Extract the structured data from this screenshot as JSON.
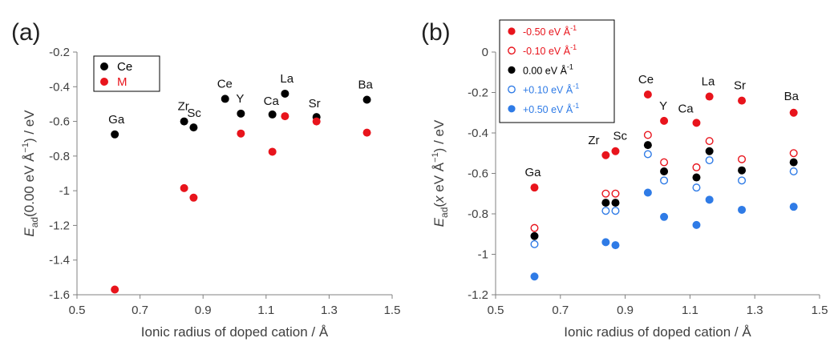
{
  "colors": {
    "black": "#000000",
    "red": "#e8141c",
    "blue": "#2f7be6",
    "axis": "#808080"
  },
  "chart_data": [
    {
      "panel_label": "(a)",
      "type": "scatter",
      "xlabel": "Ionic radius of doped cation / Å",
      "ylabel_parts": [
        "E",
        "ad",
        "(0.00 eV Å",
        "−1",
        ") / eV"
      ],
      "xlim": [
        0.5,
        1.5
      ],
      "ylim": [
        -1.6,
        -0.2
      ],
      "xticks": [
        0.5,
        0.7,
        0.9,
        1.1,
        1.3,
        1.5
      ],
      "xtick_labels": [
        "0.5",
        "0.7",
        "0.9",
        "1.1",
        "1.3",
        "1.5"
      ],
      "yticks": [
        -1.6,
        -1.4,
        -1.2,
        -1.0,
        -0.8,
        -0.6,
        -0.4,
        -0.2
      ],
      "ytick_labels": [
        "-1.6",
        "-1.4",
        "-1.2",
        "-1",
        "-0.8",
        "-0.6",
        "-0.4",
        "-0.2"
      ],
      "grid": false,
      "legend_position": "top-left",
      "series": [
        {
          "name": "Ce",
          "color": "#000000",
          "fill": "filled",
          "x": [
            0.62,
            0.84,
            0.87,
            0.97,
            1.02,
            1.12,
            1.16,
            1.26,
            1.42
          ],
          "y": [
            -0.675,
            -0.6,
            -0.635,
            -0.47,
            -0.555,
            -0.56,
            -0.44,
            -0.575,
            -0.475
          ]
        },
        {
          "name": "M",
          "color": "#e8141c",
          "fill": "filled",
          "x": [
            0.62,
            0.84,
            0.87,
            1.02,
            1.12,
            1.16,
            1.26,
            1.42
          ],
          "y": [
            -1.57,
            -0.985,
            -1.04,
            -0.67,
            -0.775,
            -0.57,
            -0.6,
            -0.665
          ]
        }
      ],
      "annotations": [
        {
          "text": "Ga",
          "x": 0.62,
          "y": -0.675
        },
        {
          "text": "Zr",
          "x": 0.84,
          "y": -0.6
        },
        {
          "text": "Sc",
          "x": 0.87,
          "y": -0.635
        },
        {
          "text": "Ce",
          "x": 0.97,
          "y": -0.47
        },
        {
          "text": "Y",
          "x": 1.02,
          "y": -0.555
        },
        {
          "text": "Ca",
          "x": 1.12,
          "y": -0.56
        },
        {
          "text": "La",
          "x": 1.16,
          "y": -0.44
        },
        {
          "text": "Sr",
          "x": 1.26,
          "y": -0.575
        },
        {
          "text": "Ba",
          "x": 1.42,
          "y": -0.475
        }
      ]
    },
    {
      "panel_label": "(b)",
      "type": "scatter",
      "xlabel": "Ionic radius of doped cation / Å",
      "ylabel_parts": [
        "E",
        "ad",
        "(",
        "x",
        " eV Å",
        "−1",
        ") / eV"
      ],
      "xlim": [
        0.5,
        1.5
      ],
      "ylim": [
        -1.2,
        0
      ],
      "xticks": [
        0.5,
        0.7,
        0.9,
        1.1,
        1.3,
        1.5
      ],
      "xtick_labels": [
        "0.5",
        "0.7",
        "0.9",
        "1.1",
        "1.3",
        "1.5"
      ],
      "yticks": [
        -1.2,
        -1.0,
        -0.8,
        -0.6,
        -0.4,
        -0.2,
        0
      ],
      "ytick_labels": [
        "-1.2",
        "-1",
        "-0.8",
        "-0.6",
        "-0.4",
        "-0.2",
        "0"
      ],
      "grid": false,
      "legend_position": "top-left",
      "series": [
        {
          "name": "-0.50 eV Å",
          "name_sup": "-1",
          "color": "#e8141c",
          "fill": "filled",
          "x": [
            0.62,
            0.84,
            0.87,
            0.97,
            1.02,
            1.12,
            1.16,
            1.26,
            1.42
          ],
          "y": [
            -0.67,
            -0.51,
            -0.49,
            -0.21,
            -0.34,
            -0.35,
            -0.22,
            -0.24,
            -0.3
          ]
        },
        {
          "name": "-0.10 eV Å",
          "name_sup": "-1",
          "color": "#e8141c",
          "fill": "open",
          "x": [
            0.62,
            0.84,
            0.87,
            0.97,
            1.02,
            1.12,
            1.16,
            1.26,
            1.42
          ],
          "y": [
            -0.87,
            -0.7,
            -0.7,
            -0.41,
            -0.545,
            -0.57,
            -0.44,
            -0.53,
            -0.5
          ]
        },
        {
          "name": "0.00 eV Å",
          "name_sup": "-1",
          "color": "#000000",
          "fill": "filled",
          "x": [
            0.62,
            0.84,
            0.87,
            0.97,
            1.02,
            1.12,
            1.16,
            1.26,
            1.42
          ],
          "y": [
            -0.91,
            -0.745,
            -0.745,
            -0.46,
            -0.59,
            -0.62,
            -0.49,
            -0.585,
            -0.545
          ]
        },
        {
          "name": "+0.10 eV Å",
          "name_sup": "-1",
          "color": "#2f7be6",
          "fill": "open",
          "x": [
            0.62,
            0.84,
            0.87,
            0.97,
            1.02,
            1.12,
            1.16,
            1.26,
            1.42
          ],
          "y": [
            -0.95,
            -0.785,
            -0.785,
            -0.505,
            -0.635,
            -0.67,
            -0.535,
            -0.635,
            -0.59
          ]
        },
        {
          "name": "+0.50 eV Å",
          "name_sup": "-1",
          "color": "#2f7be6",
          "fill": "filled",
          "x": [
            0.62,
            0.84,
            0.87,
            0.97,
            1.02,
            1.12,
            1.16,
            1.26,
            1.42
          ],
          "y": [
            -1.11,
            -0.94,
            -0.955,
            -0.695,
            -0.815,
            -0.855,
            -0.73,
            -0.78,
            -0.765
          ]
        }
      ],
      "annotations": [
        {
          "text": "Ga",
          "x": 0.62,
          "y": -0.67
        },
        {
          "text": "Zr",
          "x": 0.84,
          "y": -0.51
        },
        {
          "text": "Sc",
          "x": 0.87,
          "y": -0.49
        },
        {
          "text": "Ce",
          "x": 0.97,
          "y": -0.21
        },
        {
          "text": "Y",
          "x": 1.02,
          "y": -0.34
        },
        {
          "text": "Ca",
          "x": 1.12,
          "y": -0.35
        },
        {
          "text": "La",
          "x": 1.16,
          "y": -0.22
        },
        {
          "text": "Sr",
          "x": 1.26,
          "y": -0.24
        },
        {
          "text": "Ba",
          "x": 1.42,
          "y": -0.3
        }
      ]
    }
  ]
}
